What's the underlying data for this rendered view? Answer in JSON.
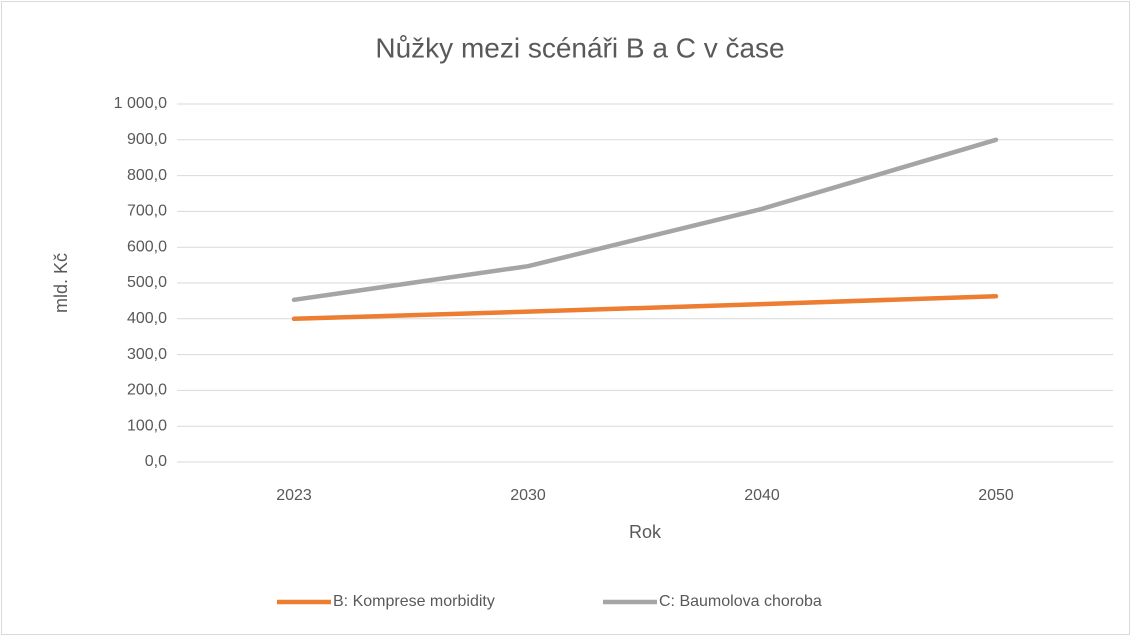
{
  "chart_data": {
    "type": "line",
    "title": "Nůžky mezi scénáři B a C v čase",
    "x_label": "Rok",
    "y_label": "mld. Kč",
    "categories": [
      "2023",
      "2030",
      "2040",
      "2050"
    ],
    "series": [
      {
        "name": "B: Komprese morbidity",
        "color": "#ed7d31",
        "values": [
          400,
          420,
          441,
          463
        ]
      },
      {
        "name": "C: Baumolova choroba",
        "color": "#a5a5a5",
        "values": [
          453,
          547,
          707,
          900
        ]
      }
    ],
    "ylim": [
      0,
      1000
    ],
    "yticks": [
      {
        "value": 0,
        "label": "0,0"
      },
      {
        "value": 100,
        "label": "100,0"
      },
      {
        "value": 200,
        "label": "200,0"
      },
      {
        "value": 300,
        "label": "300,0"
      },
      {
        "value": 400,
        "label": "400,0"
      },
      {
        "value": 500,
        "label": "500,0"
      },
      {
        "value": 600,
        "label": "600,0"
      },
      {
        "value": 700,
        "label": "700,0"
      },
      {
        "value": 800,
        "label": "800,0"
      },
      {
        "value": 900,
        "label": "900,0"
      },
      {
        "value": 1000,
        "label": "1 000,0"
      }
    ],
    "grid": true,
    "legend": "bottom"
  }
}
